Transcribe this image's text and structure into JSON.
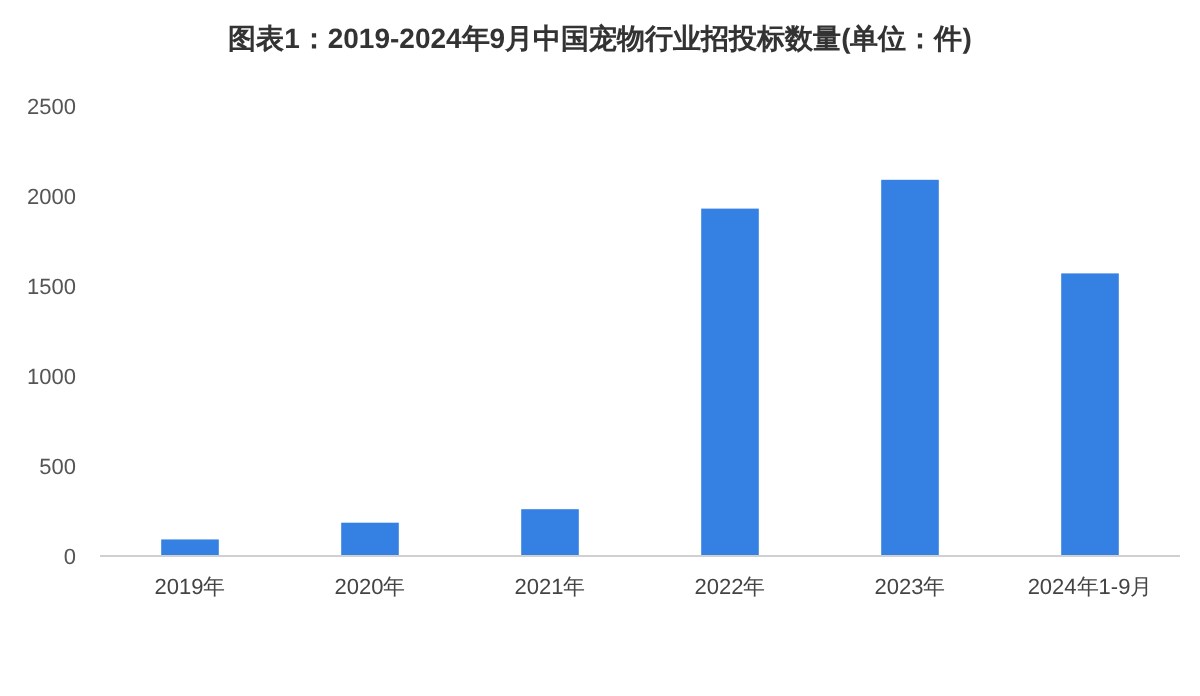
{
  "chart_data": {
    "type": "bar",
    "title": "图表1：2019-2024年9月中国宠物行业招投标数量(单位：件)",
    "categories": [
      "2019年",
      "2020年",
      "2021年",
      "2022年",
      "2023年",
      "2024年1-9月"
    ],
    "values": [
      92,
      185,
      260,
      1930,
      2090,
      1570
    ],
    "color": "#3580e3",
    "ylim": [
      0,
      2500
    ],
    "yticks": [
      0,
      500,
      1000,
      1500,
      2000,
      2500
    ],
    "grid": false
  }
}
